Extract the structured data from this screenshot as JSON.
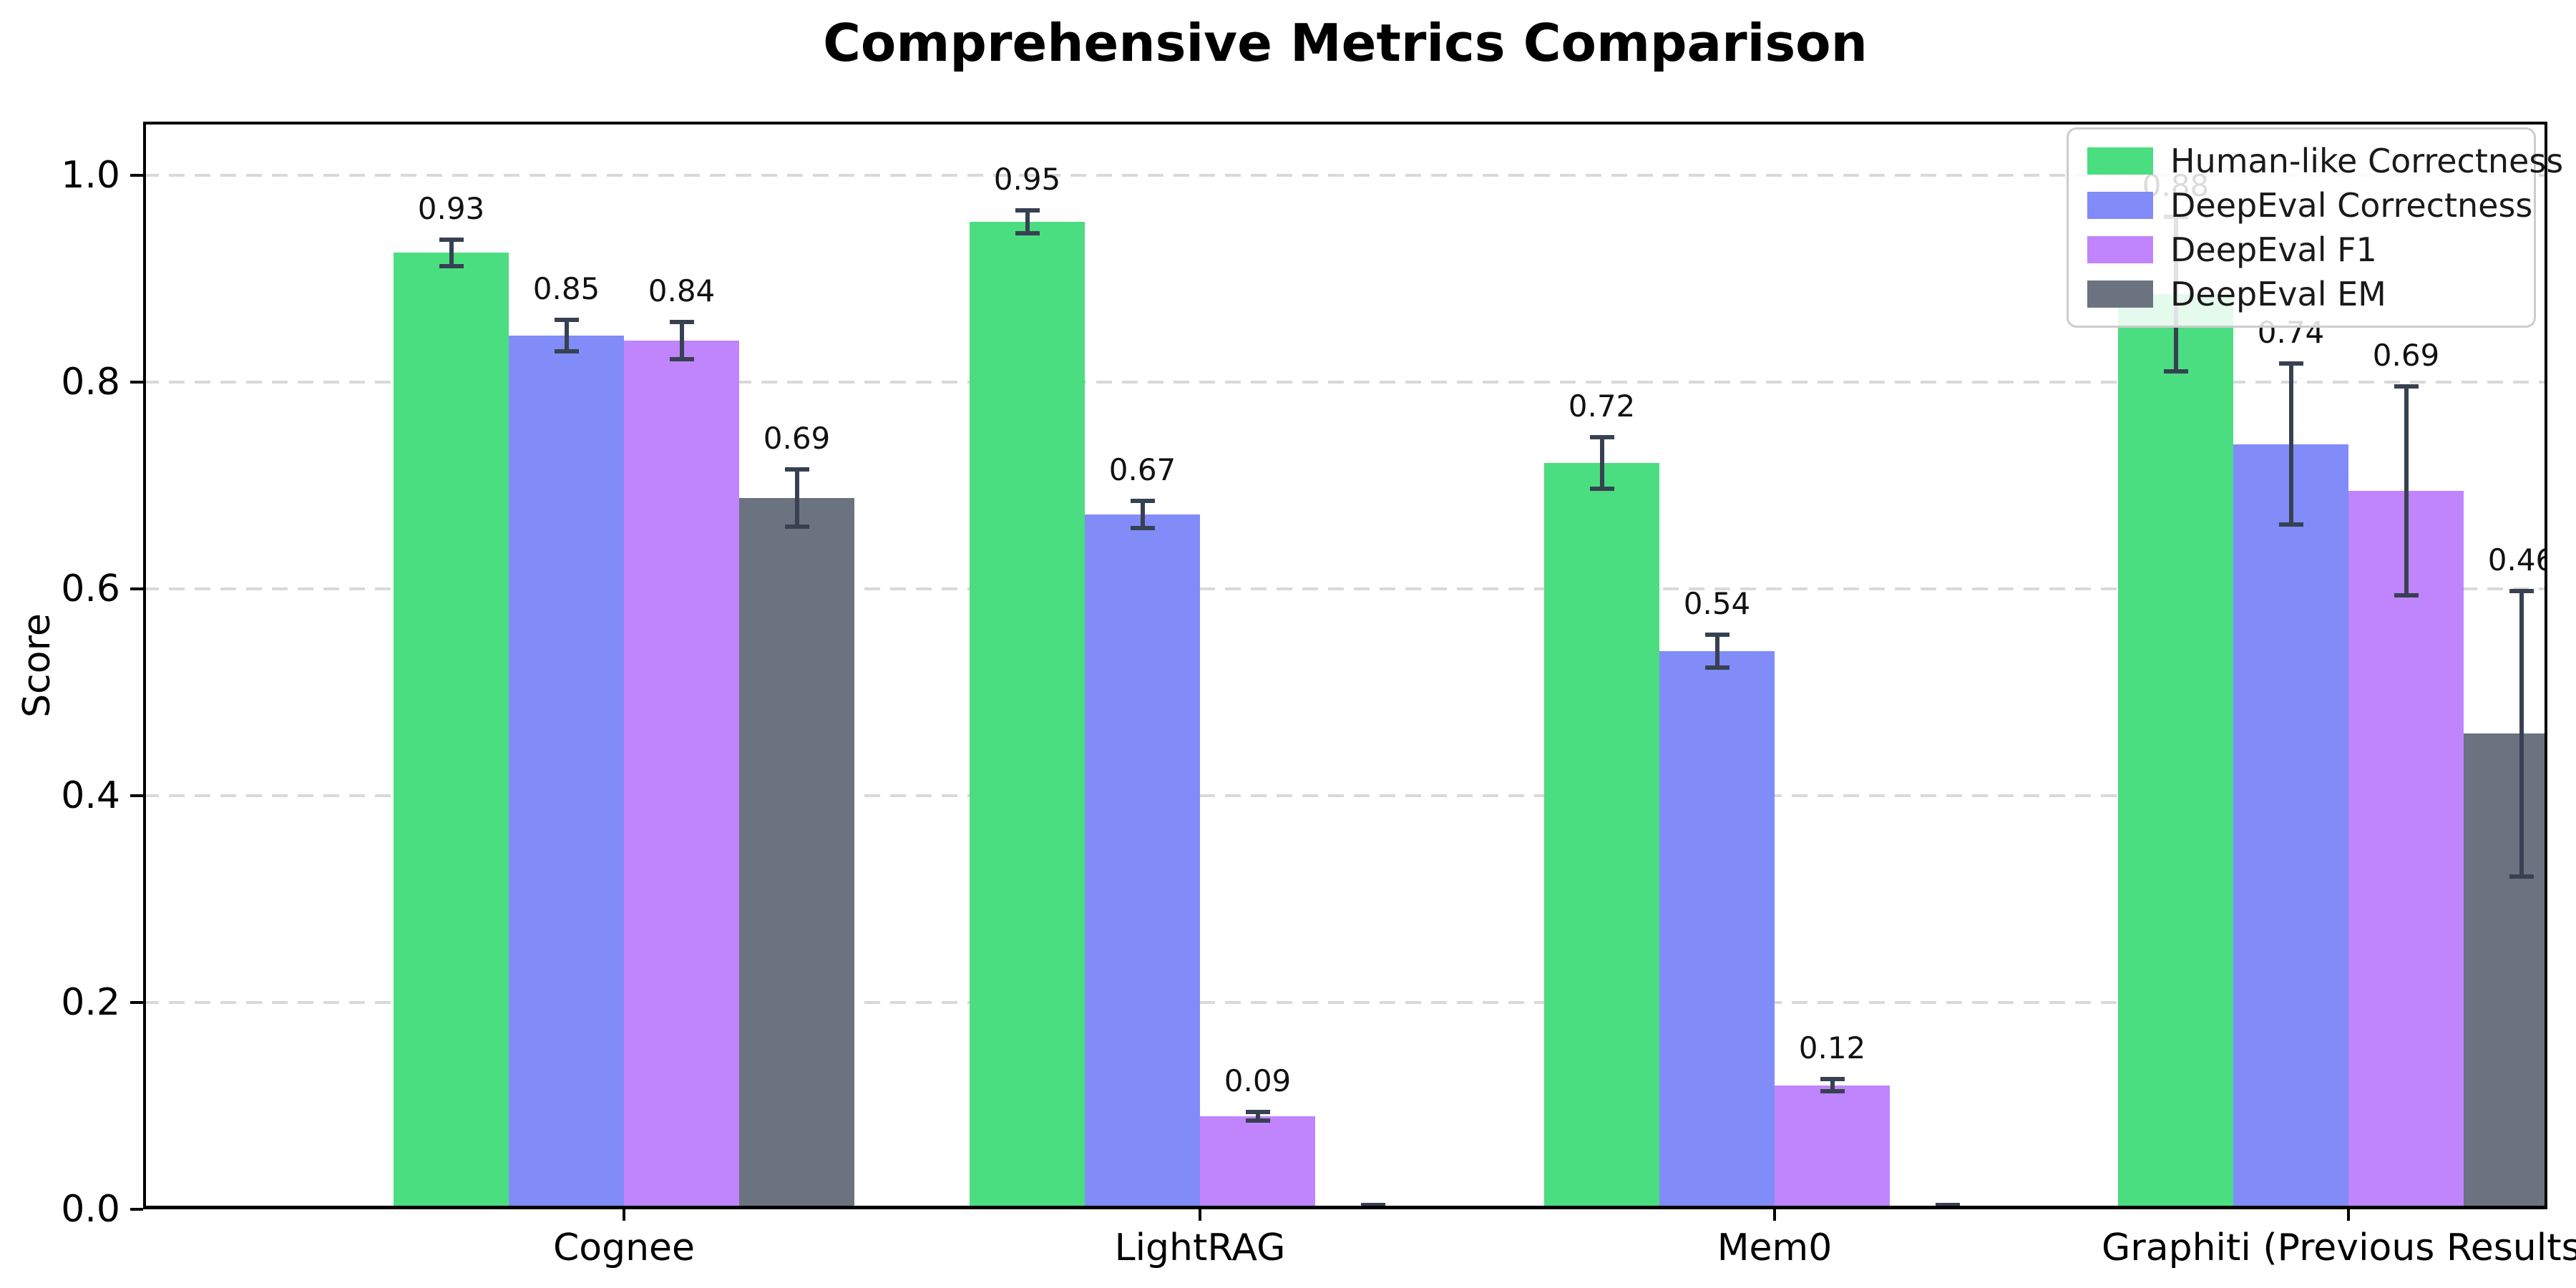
{
  "chart_data": {
    "type": "bar",
    "title": "Comprehensive Metrics Comparison",
    "xlabel": "",
    "ylabel": "Score",
    "categories": [
      "Cognee",
      "LightRAG",
      "Mem0",
      "Graphiti (Previous Results)"
    ],
    "series": [
      {
        "name": "Human-like Correctness",
        "color": "#4ade80",
        "values": [
          0.925,
          0.955,
          0.722,
          0.885
        ],
        "value_labels": [
          "0.93",
          "0.95",
          "0.72",
          "0.88"
        ],
        "errors": [
          0.015,
          0.013,
          0.027,
          0.077
        ]
      },
      {
        "name": "DeepEval Correctness",
        "color": "#818cf8",
        "values": [
          0.845,
          0.672,
          0.54,
          0.74
        ],
        "value_labels": [
          "0.85",
          "0.67",
          "0.54",
          "0.74"
        ],
        "errors": [
          0.017,
          0.015,
          0.018,
          0.08
        ]
      },
      {
        "name": "DeepEval F1",
        "color": "#c084fc",
        "values": [
          0.84,
          0.09,
          0.12,
          0.695
        ],
        "value_labels": [
          "0.84",
          "0.09",
          "0.12",
          "0.69"
        ],
        "errors": [
          0.02,
          0.006,
          0.008,
          0.103
        ]
      },
      {
        "name": "DeepEval EM",
        "color": "#6b7280",
        "values": [
          0.688,
          0.002,
          0.002,
          0.46
        ],
        "value_labels": [
          "0.69",
          null,
          null,
          "0.46"
        ],
        "errors": [
          0.03,
          0.004,
          0.004,
          0.14
        ]
      }
    ],
    "yticks": [
      "0.0",
      "0.2",
      "0.4",
      "0.6",
      "0.8",
      "1.0"
    ],
    "ylim": [
      0,
      1.05
    ],
    "grid": {
      "axis": "y",
      "style": "dashed",
      "color": "#d9d9d9"
    },
    "legend_position": "upper right",
    "error_bar_color": "#374151",
    "background": "#ffffff"
  }
}
